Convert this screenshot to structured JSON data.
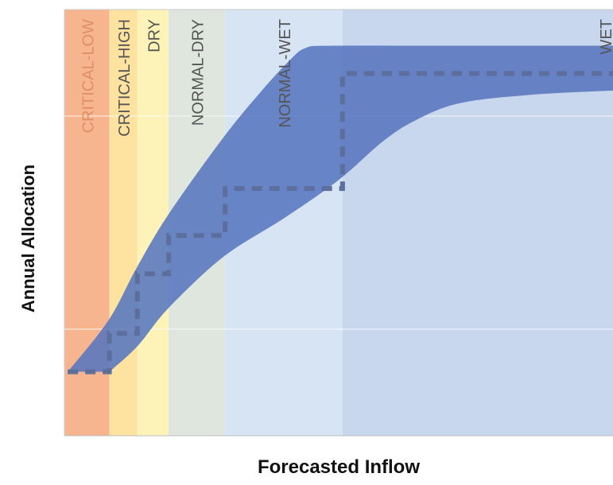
{
  "chart_data": {
    "type": "area",
    "title": "",
    "xlabel": "Forecasted Inflow",
    "ylabel": "Annual Allocation",
    "xlim": [
      0,
      100
    ],
    "ylim": [
      0,
      100
    ],
    "grid": true,
    "zones": [
      {
        "label": "CRITICAL-LOW",
        "start": 0,
        "end": 8.2,
        "color": "#f6b58f",
        "label_color": "#e08d6a"
      },
      {
        "label": "CRITICAL-HIGH",
        "start": 8.2,
        "end": 13.3,
        "color": "#fde2a0",
        "label_color": "#555555"
      },
      {
        "label": "DRY",
        "start": 13.3,
        "end": 19.0,
        "color": "#fdf2b8",
        "label_color": "#555555"
      },
      {
        "label": "NORMAL-DRY",
        "start": 19.0,
        "end": 29.3,
        "color": "#dfe6de",
        "label_color": "#555555"
      },
      {
        "label": "NORMAL-WET",
        "start": 29.3,
        "end": 50.7,
        "color": "#d6e4f4",
        "label_color": "#555555"
      },
      {
        "label": "WET",
        "start": 50.7,
        "end": 100,
        "color": "#c8d7ee",
        "label_color": "#555555"
      }
    ],
    "band": {
      "color": "#5876bf",
      "upper": [
        {
          "x": 0.6,
          "y": 15
        },
        {
          "x": 8,
          "y": 27
        },
        {
          "x": 13,
          "y": 39
        },
        {
          "x": 19,
          "y": 52
        },
        {
          "x": 29,
          "y": 70
        },
        {
          "x": 36,
          "y": 81
        },
        {
          "x": 41,
          "y": 88
        },
        {
          "x": 44,
          "y": 91
        },
        {
          "x": 49,
          "y": 91.5
        },
        {
          "x": 70,
          "y": 91.5
        },
        {
          "x": 100,
          "y": 91.5
        }
      ],
      "lower": [
        {
          "x": 8.2,
          "y": 15
        },
        {
          "x": 13.3,
          "y": 21
        },
        {
          "x": 19,
          "y": 30
        },
        {
          "x": 29,
          "y": 42
        },
        {
          "x": 40,
          "y": 51
        },
        {
          "x": 50,
          "y": 60
        },
        {
          "x": 58,
          "y": 69
        },
        {
          "x": 64,
          "y": 74
        },
        {
          "x": 72,
          "y": 78
        },
        {
          "x": 85,
          "y": 80
        },
        {
          "x": 100,
          "y": 81
        }
      ]
    },
    "step_series": {
      "color": "#5c6e9c",
      "points": [
        {
          "x": 0.6,
          "y": 15
        },
        {
          "x": 8.2,
          "y": 15
        },
        {
          "x": 8.2,
          "y": 24
        },
        {
          "x": 13.3,
          "y": 24
        },
        {
          "x": 13.3,
          "y": 38
        },
        {
          "x": 19,
          "y": 38
        },
        {
          "x": 19,
          "y": 47
        },
        {
          "x": 29.3,
          "y": 47
        },
        {
          "x": 29.3,
          "y": 58
        },
        {
          "x": 50.7,
          "y": 58
        },
        {
          "x": 50.7,
          "y": 85
        },
        {
          "x": 100,
          "y": 85
        }
      ]
    },
    "gridlines_y": [
      25,
      75
    ]
  }
}
